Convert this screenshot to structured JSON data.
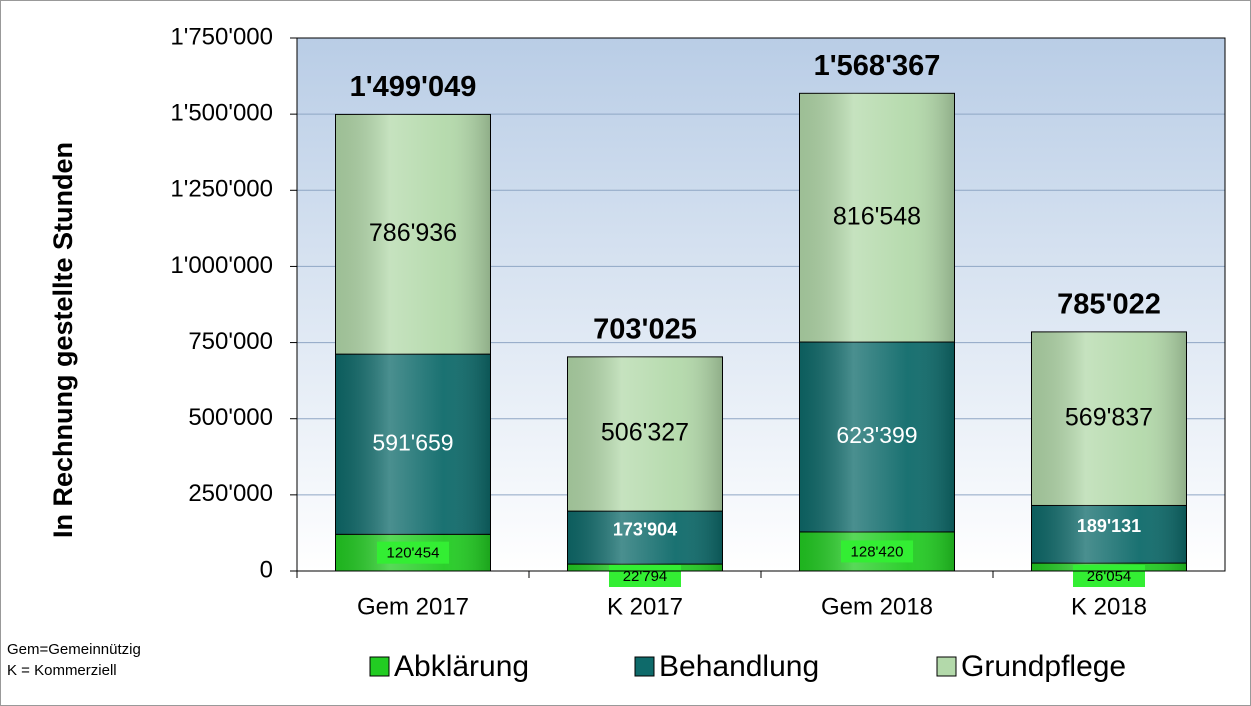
{
  "chart_data": {
    "type": "stacked-bar",
    "y_axis_label": "In Rechnung gestellte Stunden",
    "categories": [
      "Gem 2017",
      "K 2017",
      "Gem 2018",
      "K 2018"
    ],
    "series": [
      {
        "name": "Abklärung",
        "color": "#22cc22",
        "values": [
          120454,
          22794,
          128420,
          26054
        ],
        "value_labels": [
          "120'454",
          "22'794",
          "128'420",
          "26'054"
        ]
      },
      {
        "name": "Behandlung",
        "color": "#0e6a6a",
        "values": [
          591659,
          173904,
          623399,
          189131
        ],
        "value_labels": [
          "591'659",
          "173'904",
          "623'399",
          "189'131"
        ]
      },
      {
        "name": "Grundpflege",
        "color": "#b3d9aa",
        "values": [
          786936,
          506327,
          816548,
          569837
        ],
        "value_labels": [
          "786'936",
          "506'327",
          "816'548",
          "569'837"
        ]
      }
    ],
    "totals": [
      1499049,
      703025,
      1568367,
      785022
    ],
    "total_labels": [
      "1'499'049",
      "703'025",
      "1'568'367",
      "785'022"
    ],
    "ylim": [
      0,
      1750000
    ],
    "yticks": [
      0,
      {
        "value": 250000,
        "label": "250'000"
      },
      {
        "value": 500000,
        "label": "500'000"
      },
      {
        "value": 750000,
        "label": "750'000"
      },
      {
        "value": 1000000,
        "label": "1'000'000"
      },
      {
        "value": 1250000,
        "label": "1'250'000"
      },
      {
        "value": 1500000,
        "label": "1'500'000"
      },
      {
        "value": 1750000,
        "label": "1'750'000"
      }
    ],
    "grid": true,
    "legend": "bottom",
    "notes": [
      "Gem=Gemeinnützig",
      "K = Kommerziell"
    ]
  }
}
